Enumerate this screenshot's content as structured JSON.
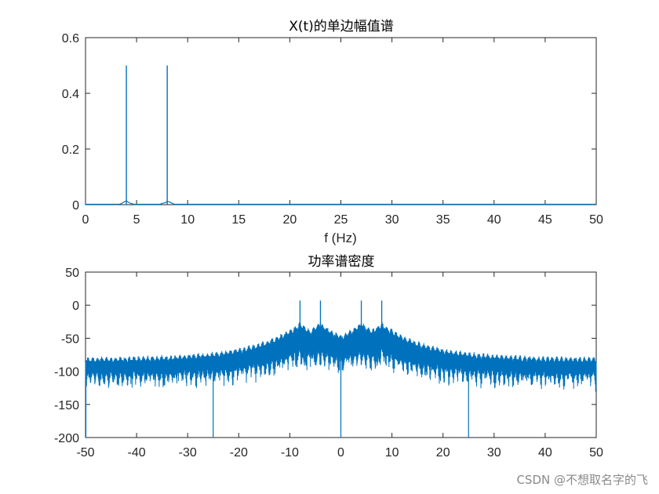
{
  "watermark": "CSDN @不想取名字的飞",
  "chart_data": [
    {
      "type": "line",
      "title": "X(t)的单边幅值谱",
      "xlabel": "f (Hz)",
      "ylabel": "",
      "xlim": [
        0,
        50
      ],
      "ylim": [
        0,
        0.6
      ],
      "xticks": [
        0,
        5,
        10,
        15,
        20,
        25,
        30,
        35,
        40,
        45,
        50
      ],
      "yticks": [
        0,
        0.2,
        0.4,
        0.6
      ],
      "ytick_labels": [
        "0",
        "0.2",
        "0.4",
        "0.6"
      ],
      "color": "#0072BD",
      "peaks": [
        {
          "x": 4,
          "y": 0.5
        },
        {
          "x": 8,
          "y": 0.5
        }
      ],
      "series": [
        {
          "values_desc": "amplitude spectrum, near zero except spikes",
          "x": [
            0,
            3.5,
            3.9,
            4,
            4.1,
            4.5,
            7.5,
            7.9,
            8,
            8.1,
            8.5,
            50
          ],
          "y": [
            0,
            0.005,
            0.01,
            0.5,
            0.01,
            0.005,
            0.005,
            0.01,
            0.5,
            0.01,
            0.005,
            0
          ]
        }
      ]
    },
    {
      "type": "line",
      "title": "功率谱密度",
      "xlabel": "",
      "ylabel": "",
      "xlim": [
        -50,
        50
      ],
      "ylim": [
        -200,
        50
      ],
      "xticks": [
        -50,
        -40,
        -30,
        -20,
        -10,
        0,
        10,
        20,
        30,
        40,
        50
      ],
      "yticks": [
        -200,
        -150,
        -100,
        -50,
        0,
        50
      ],
      "color": "#0072BD",
      "peaks": [
        {
          "x": -8,
          "y": 7
        },
        {
          "x": -4,
          "y": 7
        },
        {
          "x": 4,
          "y": 7
        },
        {
          "x": 8,
          "y": 7
        }
      ],
      "dips": [
        {
          "x": -25,
          "y": -200
        },
        {
          "x": 0,
          "y": -200
        },
        {
          "x": 25,
          "y": -200
        }
      ],
      "envelope": {
        "upper_at_edges": -78,
        "upper_near_peaks": -25,
        "lower_at_edges": -100,
        "lower_near_center": -65
      }
    }
  ]
}
